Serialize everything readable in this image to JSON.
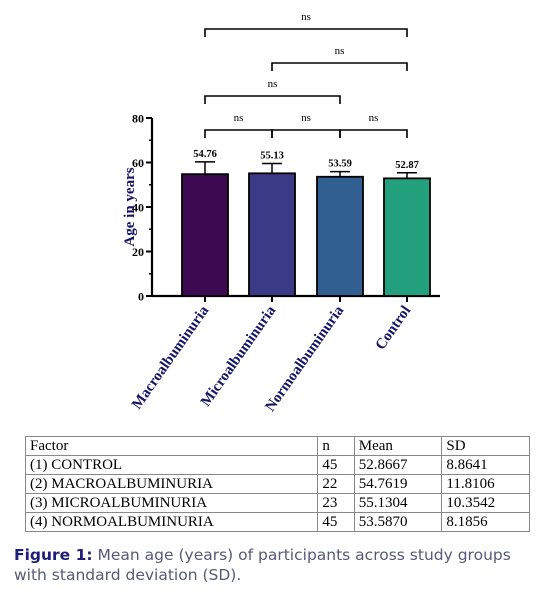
{
  "chart_data": {
    "type": "bar",
    "categories": [
      "Macroalbuminuria",
      "Microalbuminuria",
      "Normoalbuminuria",
      "Control"
    ],
    "values": [
      54.76,
      55.13,
      53.59,
      52.87
    ],
    "errors": [
      5.5,
      4.4,
      2.3,
      2.5
    ],
    "value_labels": [
      "54.76",
      "55.13",
      "53.59",
      "52.87"
    ],
    "colors": [
      "#3d0a52",
      "#3b3a86",
      "#315f92",
      "#23a17e"
    ],
    "ylabel": "Age in years",
    "ylim": [
      0,
      80
    ],
    "yticks": [
      0,
      20,
      40,
      60,
      80
    ],
    "grid": false,
    "significance": [
      {
        "from": 0,
        "to": 1,
        "label": "ns"
      },
      {
        "from": 1,
        "to": 2,
        "label": "ns"
      },
      {
        "from": 2,
        "to": 3,
        "label": "ns"
      },
      {
        "from": 0,
        "to": 2,
        "label": "ns"
      },
      {
        "from": 1,
        "to": 3,
        "label": "ns"
      },
      {
        "from": 0,
        "to": 3,
        "label": "ns"
      }
    ]
  },
  "table": {
    "headers": [
      "Factor",
      "n",
      "Mean",
      "SD"
    ],
    "rows": [
      [
        "(1) CONTROL",
        "45",
        "52.8667",
        "8.8641"
      ],
      [
        "(2) MACROALBUMINURIA",
        "22",
        "54.7619",
        "11.8106"
      ],
      [
        "(3) MICROALBUMINURIA",
        "23",
        "55.1304",
        "10.3542"
      ],
      [
        "(4) NORMOALBUMINURIA",
        "45",
        "53.5870",
        "8.1856"
      ]
    ]
  },
  "caption": {
    "label": "Figure 1:",
    "text": "Mean age (years) of participants across study groups with standard deviation (SD)."
  }
}
